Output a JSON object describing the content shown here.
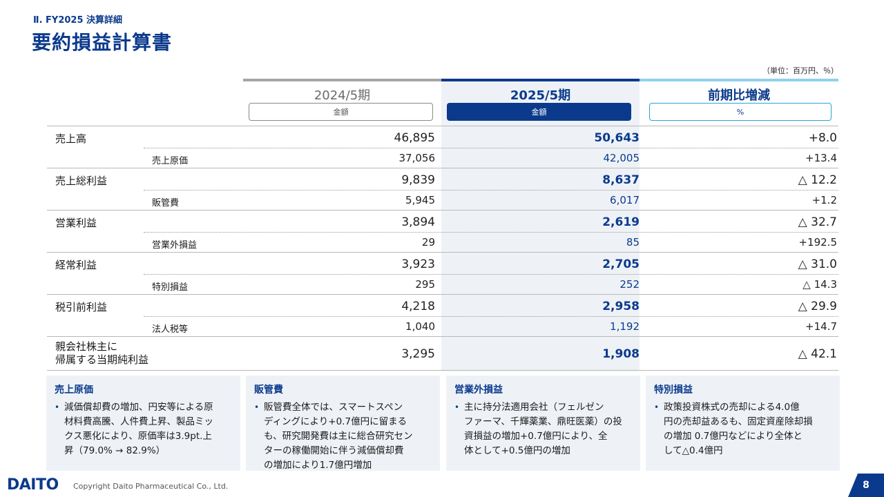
{
  "header": {
    "section": "Ⅱ. FY2025 決算詳細",
    "title": "要約損益計算書",
    "unit": "（単位：百万円、％）"
  },
  "columns": {
    "prev": {
      "title": "2024/5期",
      "pill": "金額"
    },
    "curr": {
      "title": "2025/5期",
      "pill": "金額"
    },
    "diff": {
      "title": "前期比増減",
      "pill": "%"
    }
  },
  "rows": [
    {
      "label": "売上高",
      "prev": "46,895",
      "curr": "50,643",
      "diff": "+8.0"
    },
    {
      "label": "売上原価",
      "prev": "37,056",
      "curr": "42,005",
      "diff": "+13.4"
    },
    {
      "label": "売上総利益",
      "prev": "9,839",
      "curr": "8,637",
      "diff": "△ 12.2"
    },
    {
      "label": "販管費",
      "prev": "5,945",
      "curr": "6,017",
      "diff": "+1.2"
    },
    {
      "label": "営業利益",
      "prev": "3,894",
      "curr": "2,619",
      "diff": "△ 32.7"
    },
    {
      "label": "営業外損益",
      "prev": "29",
      "curr": "85",
      "diff": "+192.5"
    },
    {
      "label": "経常利益",
      "prev": "3,923",
      "curr": "2,705",
      "diff": "△ 31.0"
    },
    {
      "label": "特別損益",
      "prev": "295",
      "curr": "252",
      "diff": "△ 14.3"
    },
    {
      "label": "税引前利益",
      "prev": "4,218",
      "curr": "2,958",
      "diff": "△ 29.9"
    },
    {
      "label": "法人税等",
      "prev": "1,040",
      "curr": "1,192",
      "diff": "+14.7"
    },
    {
      "label_line1": "親会社株主に",
      "label_line2": "帰属する当期純利益",
      "prev": "3,295",
      "curr": "1,908",
      "diff": "△ 42.1"
    }
  ],
  "notes": [
    {
      "head": "売上原価",
      "bullet": "•",
      "lines": [
        "減価償却費の増加、円安等による原",
        "材料費高騰、人件費上昇、製品ミッ",
        "クス悪化により、原価率は3.9pt.上",
        "昇（79.0% → 82.9%）"
      ]
    },
    {
      "head": "販管費",
      "bullet": "•",
      "lines": [
        "販管費全体では、スマートスペン",
        "ディングにより+0.7億円に留まる",
        "も、研究開発費は主に総合研究セン",
        "ターの稼働開始に伴う減価償却費",
        "の増加により1.7億円増加"
      ]
    },
    {
      "head": "営業外損益",
      "bullet": "•",
      "lines": [
        "主に持分法適用会社（フェルゼン",
        "ファーマ、千輝薬業、鼎旺医薬）の投",
        "資損益の増加+0.7億円により、全",
        "体として+0.5億円の増加"
      ]
    },
    {
      "head": "特別損益",
      "bullet": "•",
      "lines": [
        "政策投資株式の売却による4.0億",
        "円の売却益あるも、固定資産除却損",
        "の増加 0.7億円などにより全体と",
        "して△0.4億円"
      ]
    }
  ],
  "footer": {
    "logo": "DAITO",
    "copyright": "Copyright  Daito Pharmaceutical Co., Ltd.",
    "page": "8"
  }
}
